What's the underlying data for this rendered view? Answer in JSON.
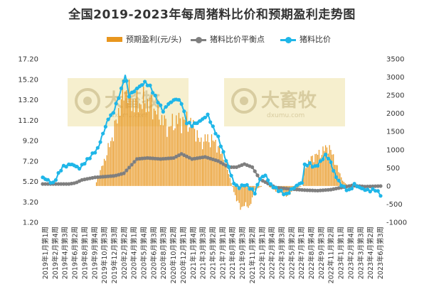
{
  "chart_data": {
    "type": "bar+line",
    "title": "全国2019-2023年每周猪料比价和预期盈利走势图",
    "legend": [
      {
        "key": "profit",
        "label": "预期盈利(元/头)",
        "color": "#E8961E",
        "kind": "bar"
      },
      {
        "key": "breakeven",
        "label": "猪料比价平衡点",
        "color": "#7F7F7F",
        "kind": "line"
      },
      {
        "key": "ratio",
        "label": "猪料比价",
        "color": "#1FB6E8",
        "kind": "line"
      }
    ],
    "left_axis": {
      "min": 1.2,
      "max": 17.2,
      "ticks": [
        "1.20",
        "3.20",
        "5.20",
        "7.20",
        "9.20",
        "11.20",
        "13.20",
        "15.20",
        "17.20"
      ]
    },
    "right_axis": {
      "min": -1000,
      "max": 3500,
      "ticks": [
        "-1000",
        "-500",
        "0",
        "500",
        "1000",
        "1500",
        "2000",
        "2500",
        "3000",
        "3500"
      ]
    },
    "x_labels": [
      "2019年1月第1周",
      "2019年2月第4周",
      "2019年4月第3周",
      "2019年6月第2周",
      "2019年8月第1周",
      "2019年9月第4周",
      "2019年10月第3周",
      "2019年12月第3周",
      "2020年2月第2周",
      "2020年4月第1周",
      "2020年5月第4周",
      "2020年6月第3周",
      "2020年8月第3周",
      "2020年10月第2周",
      "2020年12月第1周",
      "2021年1月第4周",
      "2021年3月第3周",
      "2021年5月第2周",
      "2021年7月第1周",
      "2021年8月第4周",
      "2021年9月第3周",
      "2021年11月第2周",
      "2022年1月第1周",
      "2022年2月第4周",
      "2022年3月第3周",
      "2022年5月第2周",
      "2022年7月第1周",
      "2022年8月第4周",
      "2022年9月第3周",
      "2022年11月第2周",
      "2023年1月第1周",
      "2023年2月第4周",
      "2023年3月第3周",
      "2023年4月第2周",
      "2023年6月第3周"
    ],
    "watermark": {
      "text": "大畜牧",
      "sub": "dxumu.com"
    },
    "ratio_keys": [
      [
        0,
        5.6
      ],
      [
        8,
        5.0
      ],
      [
        15,
        6.6
      ],
      [
        22,
        6.9
      ],
      [
        28,
        6.5
      ],
      [
        34,
        7.3
      ],
      [
        42,
        8.4
      ],
      [
        50,
        11.3
      ],
      [
        54,
        12.0
      ],
      [
        60,
        14.2
      ],
      [
        63,
        15.6
      ],
      [
        66,
        13.6
      ],
      [
        72,
        14.3
      ],
      [
        78,
        14.9
      ],
      [
        82,
        14.5
      ],
      [
        86,
        13.5
      ],
      [
        92,
        12.1
      ],
      [
        96,
        12.8
      ],
      [
        102,
        13.3
      ],
      [
        106,
        12.9
      ],
      [
        110,
        11.0
      ],
      [
        114,
        10.7
      ],
      [
        120,
        11.1
      ],
      [
        126,
        11.7
      ],
      [
        130,
        10.5
      ],
      [
        134,
        9.5
      ],
      [
        138,
        8.0
      ],
      [
        142,
        6.6
      ],
      [
        146,
        5.0
      ],
      [
        150,
        4.6
      ],
      [
        154,
        4.9
      ],
      [
        158,
        4.6
      ],
      [
        162,
        4.1
      ],
      [
        166,
        5.5
      ],
      [
        170,
        5.8
      ],
      [
        174,
        4.9
      ],
      [
        178,
        4.5
      ],
      [
        182,
        4.2
      ],
      [
        186,
        3.9
      ],
      [
        190,
        4.4
      ],
      [
        194,
        4.8
      ],
      [
        198,
        5.1
      ],
      [
        200,
        6.8
      ],
      [
        204,
        6.9
      ],
      [
        208,
        6.6
      ],
      [
        212,
        7.1
      ],
      [
        216,
        7.8
      ],
      [
        220,
        7.1
      ],
      [
        222,
        6.2
      ],
      [
        226,
        5.2
      ],
      [
        230,
        4.6
      ],
      [
        234,
        4.3
      ],
      [
        238,
        4.9
      ],
      [
        242,
        4.6
      ],
      [
        246,
        4.4
      ],
      [
        250,
        4.3
      ],
      [
        254,
        4.4
      ],
      [
        258,
        3.9
      ]
    ],
    "breakeven_keys": [
      [
        0,
        4.95
      ],
      [
        20,
        4.95
      ],
      [
        25,
        5.05
      ],
      [
        30,
        5.35
      ],
      [
        40,
        5.6
      ],
      [
        55,
        5.75
      ],
      [
        62,
        6.0
      ],
      [
        67,
        6.7
      ],
      [
        72,
        7.4
      ],
      [
        80,
        7.5
      ],
      [
        90,
        7.4
      ],
      [
        100,
        7.5
      ],
      [
        106,
        7.9
      ],
      [
        114,
        7.4
      ],
      [
        124,
        7.6
      ],
      [
        134,
        7.2
      ],
      [
        142,
        6.6
      ],
      [
        148,
        6.6
      ],
      [
        154,
        6.9
      ],
      [
        160,
        6.6
      ],
      [
        166,
        5.4
      ],
      [
        172,
        5.0
      ],
      [
        178,
        4.6
      ],
      [
        190,
        4.45
      ],
      [
        200,
        4.35
      ],
      [
        210,
        4.3
      ],
      [
        220,
        4.4
      ],
      [
        228,
        4.6
      ],
      [
        236,
        4.8
      ],
      [
        246,
        4.7
      ],
      [
        258,
        4.75
      ]
    ],
    "profit_keys": [
      [
        0,
        0
      ],
      [
        40,
        0
      ],
      [
        44,
        400
      ],
      [
        50,
        1000
      ],
      [
        56,
        1700
      ],
      [
        60,
        2400
      ],
      [
        64,
        2700
      ],
      [
        68,
        2300
      ],
      [
        74,
        2300
      ],
      [
        80,
        2300
      ],
      [
        86,
        2100
      ],
      [
        90,
        1900
      ],
      [
        96,
        1600
      ],
      [
        102,
        1800
      ],
      [
        110,
        1800
      ],
      [
        116,
        1600
      ],
      [
        120,
        1200
      ],
      [
        126,
        1300
      ],
      [
        132,
        1200
      ],
      [
        138,
        800
      ],
      [
        144,
        100
      ],
      [
        148,
        -400
      ],
      [
        152,
        -600
      ],
      [
        156,
        -500
      ],
      [
        158,
        -600
      ],
      [
        162,
        -100
      ],
      [
        168,
        0
      ],
      [
        172,
        0
      ],
      [
        176,
        -100
      ],
      [
        182,
        -200
      ],
      [
        186,
        -300
      ],
      [
        192,
        -100
      ],
      [
        198,
        0
      ],
      [
        200,
        500
      ],
      [
        206,
        800
      ],
      [
        212,
        900
      ],
      [
        218,
        1100
      ],
      [
        222,
        800
      ],
      [
        226,
        400
      ],
      [
        230,
        100
      ],
      [
        234,
        0
      ],
      [
        258,
        0
      ]
    ]
  }
}
